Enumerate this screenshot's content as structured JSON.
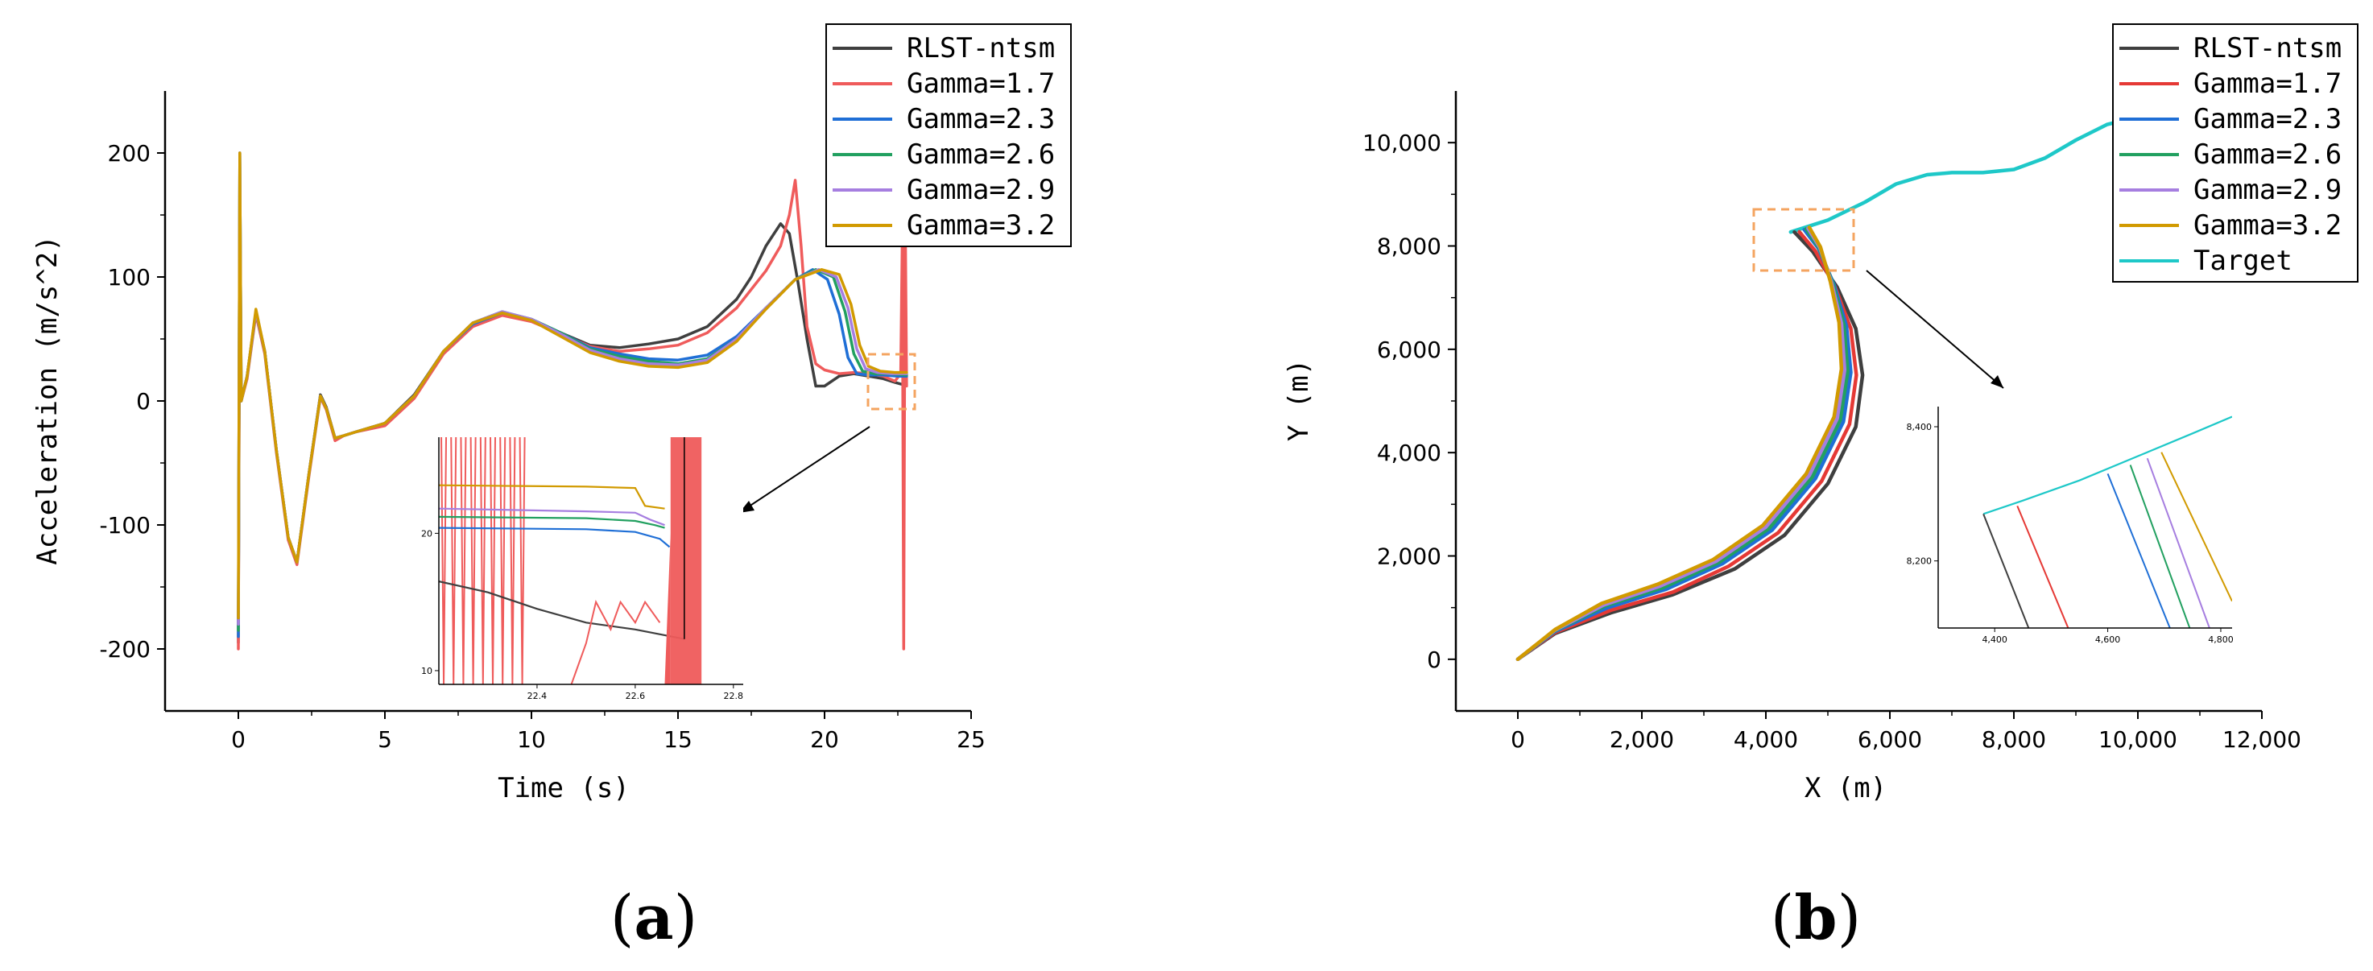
{
  "colors": {
    "rlst": "#3f3f3f",
    "g17": "#ef5b5b",
    "g17_b": "#e53935",
    "g23": "#1f6fd6",
    "g26": "#22a060",
    "g29": "#a67ee0",
    "g32": "#d19a00",
    "target": "#1ec8c8",
    "callout": "#f4a460"
  },
  "panels": [
    {
      "label_open": "(",
      "label_letter": "a",
      "label_close": ")"
    },
    {
      "label_open": "(",
      "label_letter": "b",
      "label_close": ")"
    }
  ],
  "chart_data": [
    {
      "type": "line",
      "title": "",
      "xlabel": "Time (s)",
      "ylabel": "Acceleration (m/s^2)",
      "xlim": [
        -2.5,
        25
      ],
      "ylim": [
        -250,
        250
      ],
      "xticks": [
        0,
        5,
        10,
        15,
        20,
        25
      ],
      "yticks": [
        -200,
        -100,
        0,
        100,
        200
      ],
      "legend_position": "top-right",
      "series": [
        {
          "name": "RLST-ntsm",
          "color_key": "rlst",
          "x": [
            0,
            0.05,
            0.1,
            0.3,
            0.6,
            0.9,
            1.3,
            1.7,
            2.0,
            2.4,
            2.8,
            3.0,
            3.3,
            3.6,
            4.0,
            5,
            6,
            7,
            8,
            9,
            10,
            11,
            12,
            13,
            14,
            15,
            16,
            17,
            17.5,
            18,
            18.5,
            18.8,
            19.1,
            19.4,
            19.7,
            20,
            20.5,
            21,
            21.5,
            22,
            22.4,
            22.7
          ],
          "y": [
            -195,
            150,
            0,
            20,
            72,
            40,
            -40,
            -110,
            -130,
            -60,
            5,
            -5,
            -30,
            -28,
            -25,
            -18,
            5,
            40,
            62,
            70,
            65,
            55,
            45,
            43,
            46,
            50,
            60,
            82,
            100,
            125,
            143,
            135,
            95,
            50,
            12,
            12,
            20,
            22,
            20,
            18,
            15,
            13
          ]
        },
        {
          "name": "Gamma=1.7",
          "color_key": "g17",
          "x": [
            0,
            0.05,
            0.1,
            0.3,
            0.6,
            0.9,
            1.3,
            1.7,
            2.0,
            2.4,
            2.8,
            3.0,
            3.3,
            3.6,
            4.0,
            5,
            6,
            7,
            8,
            9,
            10,
            11,
            12,
            13,
            14,
            15,
            16,
            17,
            18,
            18.5,
            18.8,
            19.0,
            19.2,
            19.4,
            19.7,
            20,
            20.5,
            21,
            21.5,
            22,
            22.4,
            22.6,
            22.65,
            22.7,
            22.75,
            22.8
          ],
          "y": [
            -200,
            150,
            0,
            18,
            70,
            38,
            -42,
            -112,
            -132,
            -62,
            3,
            -7,
            -32,
            -28,
            -25,
            -20,
            2,
            38,
            60,
            69,
            64,
            54,
            44,
            40,
            42,
            45,
            55,
            75,
            105,
            125,
            150,
            178,
            125,
            60,
            30,
            25,
            22,
            23,
            22,
            20,
            16,
            22,
            130,
            -200,
            160,
            12
          ]
        },
        {
          "name": "Gamma=2.3",
          "color_key": "g23",
          "x": [
            0,
            0.05,
            0.1,
            0.3,
            0.6,
            0.9,
            1.3,
            1.7,
            2.0,
            2.4,
            2.8,
            3.0,
            3.3,
            3.6,
            4.0,
            5,
            6,
            7,
            8,
            9,
            10,
            11,
            12,
            13,
            14,
            15,
            16,
            17,
            18,
            19,
            19.6,
            20.1,
            20.5,
            20.8,
            21.1,
            21.5,
            22,
            22.5,
            22.8
          ],
          "y": [
            -190,
            200,
            0,
            20,
            72,
            40,
            -40,
            -110,
            -130,
            -60,
            4,
            -6,
            -30,
            -28,
            -25,
            -18,
            4,
            40,
            62,
            71,
            66,
            55,
            43,
            38,
            34,
            33,
            37,
            52,
            75,
            98,
            106,
            98,
            70,
            35,
            22,
            21,
            21,
            20,
            20
          ]
        },
        {
          "name": "Gamma=2.6",
          "color_key": "g26",
          "x": [
            0,
            0.05,
            0.1,
            0.3,
            0.6,
            0.9,
            1.3,
            1.7,
            2.0,
            2.4,
            2.8,
            3.0,
            3.3,
            3.6,
            4.0,
            5,
            6,
            7,
            8,
            9,
            10,
            11,
            12,
            13,
            14,
            15,
            16,
            17,
            18,
            19,
            19.7,
            20.3,
            20.7,
            21.0,
            21.3,
            21.7,
            22.2,
            22.8
          ],
          "y": [
            -185,
            200,
            0,
            20,
            72,
            40,
            -40,
            -110,
            -130,
            -60,
            4,
            -6,
            -30,
            -28,
            -25,
            -18,
            4,
            40,
            63,
            72,
            66,
            55,
            42,
            36,
            32,
            30,
            34,
            50,
            75,
            98,
            106,
            100,
            72,
            38,
            24,
            22,
            22,
            21
          ]
        },
        {
          "name": "Gamma=2.9",
          "color_key": "g29",
          "x": [
            0,
            0.05,
            0.1,
            0.3,
            0.6,
            0.9,
            1.3,
            1.7,
            2.0,
            2.4,
            2.8,
            3.0,
            3.3,
            3.6,
            4.0,
            5,
            6,
            7,
            8,
            9,
            10,
            11,
            12,
            13,
            14,
            15,
            16,
            17,
            18,
            19,
            19.8,
            20.4,
            20.8,
            21.1,
            21.4,
            21.8,
            22.3,
            22.8
          ],
          "y": [
            -180,
            200,
            0,
            20,
            72,
            40,
            -40,
            -110,
            -130,
            -60,
            4,
            -6,
            -30,
            -28,
            -25,
            -18,
            4,
            40,
            63,
            72,
            66,
            54,
            41,
            34,
            30,
            29,
            33,
            50,
            75,
            98,
            106,
            100,
            75,
            42,
            26,
            23,
            22,
            22
          ]
        },
        {
          "name": "Gamma=3.2",
          "color_key": "g32",
          "x": [
            0,
            0.05,
            0.1,
            0.3,
            0.6,
            0.9,
            1.3,
            1.7,
            2.0,
            2.4,
            2.8,
            3.0,
            3.3,
            3.6,
            4.0,
            5,
            6,
            7,
            8,
            9,
            10,
            11,
            12,
            13,
            14,
            15,
            16,
            17,
            18,
            19,
            19.9,
            20.5,
            20.9,
            21.2,
            21.5,
            21.9,
            22.4,
            22.8
          ],
          "y": [
            -175,
            200,
            0,
            20,
            74,
            40,
            -40,
            -110,
            -130,
            -60,
            4,
            -6,
            -30,
            -28,
            -25,
            -18,
            4,
            40,
            63,
            71,
            65,
            52,
            39,
            32,
            28,
            27,
            31,
            48,
            74,
            98,
            106,
            102,
            78,
            45,
            28,
            24,
            23,
            23
          ]
        }
      ],
      "inset": {
        "xlim": [
          22.2,
          22.82
        ],
        "ylim": [
          9,
          27
        ],
        "xticks": [
          22.4,
          22.6,
          22.8
        ],
        "yticks": [
          10,
          20
        ]
      }
    },
    {
      "type": "line",
      "title": "",
      "xlabel": "X (m)",
      "ylabel": "Y (m)",
      "xlim": [
        -1000,
        12000
      ],
      "ylim": [
        -1000,
        11000
      ],
      "xticks": [
        0,
        2000,
        4000,
        6000,
        8000,
        10000,
        12000
      ],
      "xtick_labels": [
        "0",
        "2,000",
        "4,000",
        "6,000",
        "8,000",
        "10,000",
        "12,000"
      ],
      "yticks": [
        0,
        2000,
        4000,
        6000,
        8000,
        10000
      ],
      "ytick_labels": [
        "0",
        "2,000",
        "4,000",
        "6,000",
        "8,000",
        "10,000"
      ],
      "legend_position": "top-right",
      "series": [
        {
          "name": "RLST-ntsm",
          "color_key": "rlst",
          "x": [
            0,
            600,
            1500,
            2500,
            3500,
            4300,
            5000,
            5450,
            5560,
            5450,
            5150,
            4750,
            4460
          ],
          "y": [
            0,
            500,
            900,
            1250,
            1750,
            2400,
            3400,
            4500,
            5500,
            6400,
            7200,
            7900,
            8270
          ]
        },
        {
          "name": "Gamma=1.7",
          "color_key": "g17_b",
          "x": [
            0,
            600,
            1500,
            2500,
            3400,
            4200,
            4900,
            5350,
            5460,
            5370,
            5120,
            4800,
            4540
          ],
          "y": [
            0,
            520,
            950,
            1300,
            1800,
            2450,
            3450,
            4550,
            5500,
            6400,
            7200,
            7900,
            8275
          ]
        },
        {
          "name": "Gamma=2.3",
          "color_key": "g23",
          "x": [
            0,
            600,
            1450,
            2400,
            3300,
            4100,
            4800,
            5250,
            5370,
            5300,
            5100,
            4850,
            4620
          ],
          "y": [
            0,
            540,
            1000,
            1360,
            1850,
            2500,
            3500,
            4600,
            5550,
            6450,
            7250,
            7950,
            8315
          ]
        },
        {
          "name": "Gamma=2.6",
          "color_key": "g26",
          "x": [
            0,
            600,
            1400,
            2350,
            3250,
            4050,
            4750,
            5200,
            5320,
            5260,
            5080,
            4860,
            4650
          ],
          "y": [
            0,
            555,
            1030,
            1390,
            1880,
            2530,
            3530,
            4630,
            5570,
            6470,
            7270,
            7960,
            8330
          ]
        },
        {
          "name": "Gamma=2.9",
          "color_key": "g29",
          "x": [
            0,
            600,
            1380,
            2300,
            3200,
            4000,
            4700,
            5150,
            5270,
            5220,
            5060,
            4870,
            4680
          ],
          "y": [
            0,
            565,
            1050,
            1420,
            1900,
            2560,
            3560,
            4660,
            5600,
            6500,
            7290,
            7970,
            8345
          ]
        },
        {
          "name": "Gamma=3.2",
          "color_key": "g32",
          "x": [
            0,
            600,
            1350,
            2250,
            3150,
            3950,
            4650,
            5100,
            5220,
            5180,
            5040,
            4880,
            4700
          ],
          "y": [
            0,
            575,
            1080,
            1450,
            1930,
            2590,
            3590,
            4690,
            5620,
            6520,
            7310,
            7980,
            8360
          ]
        },
        {
          "name": "Target",
          "color_key": "target",
          "x": [
            4400,
            5000,
            5600,
            6100,
            6600,
            7000,
            7500,
            8000,
            8500,
            9000,
            9500,
            10000,
            10500
          ],
          "y": [
            8270,
            8500,
            8850,
            9200,
            9380,
            9420,
            9420,
            9480,
            9700,
            10050,
            10350,
            10500,
            10550
          ]
        }
      ],
      "inset": {
        "xlim": [
          4300,
          4820
        ],
        "ylim": [
          8100,
          8430
        ],
        "xticks": [
          4400,
          4600,
          4800
        ],
        "xtick_labels": [
          "4,400",
          "4,600",
          "4,800"
        ],
        "yticks": [
          8200,
          8400
        ],
        "ytick_labels": [
          "8,200",
          "8,400"
        ]
      }
    }
  ]
}
